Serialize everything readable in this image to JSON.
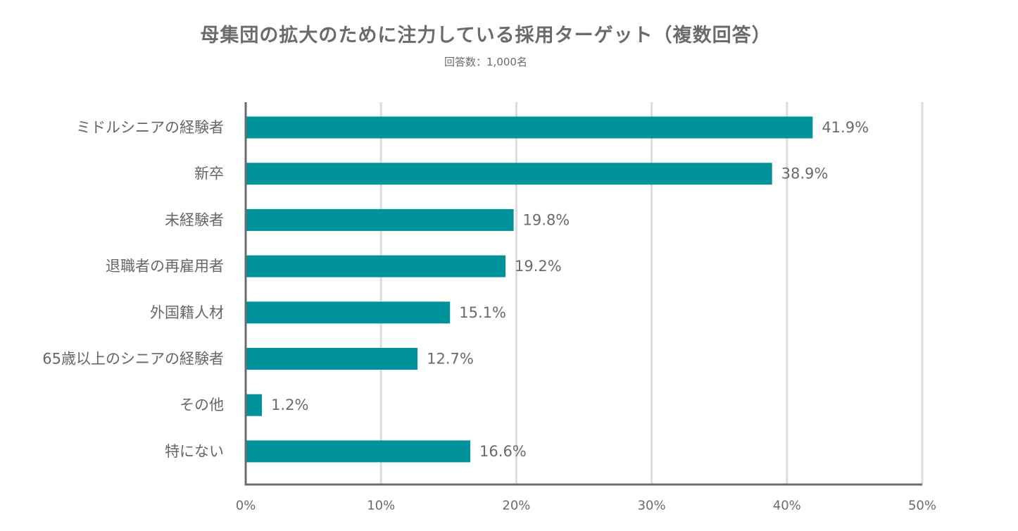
{
  "chart_data": {
    "type": "bar",
    "orientation": "horizontal",
    "title": "母集団の拡大のために注力している採用ターゲット（複数回答）",
    "subtitle": "回答数：1,000名",
    "categories": [
      "ミドルシニアの経験者",
      "新卒",
      "未経験者",
      "退職者の再雇用者",
      "外国籍人材",
      "65歳以上のシニアの経験者",
      "その他",
      "特にない"
    ],
    "values": [
      41.9,
      38.9,
      19.8,
      19.2,
      15.1,
      12.7,
      1.2,
      16.6
    ],
    "value_labels": [
      "41.9%",
      "38.9%",
      "19.8%",
      "19.2%",
      "15.1%",
      "12.7%",
      "1.2%",
      "16.6%"
    ],
    "xlim": [
      0,
      50
    ],
    "xticks": [
      0,
      10,
      20,
      30,
      40,
      50
    ],
    "xtick_labels": [
      "0%",
      "10%",
      "20%",
      "30%",
      "40%",
      "50%"
    ],
    "grid": "vertical",
    "legend": "none",
    "bar_color": "#00939c",
    "grid_color": "#dcdcdc",
    "axis_color": "#6b6b6b"
  }
}
